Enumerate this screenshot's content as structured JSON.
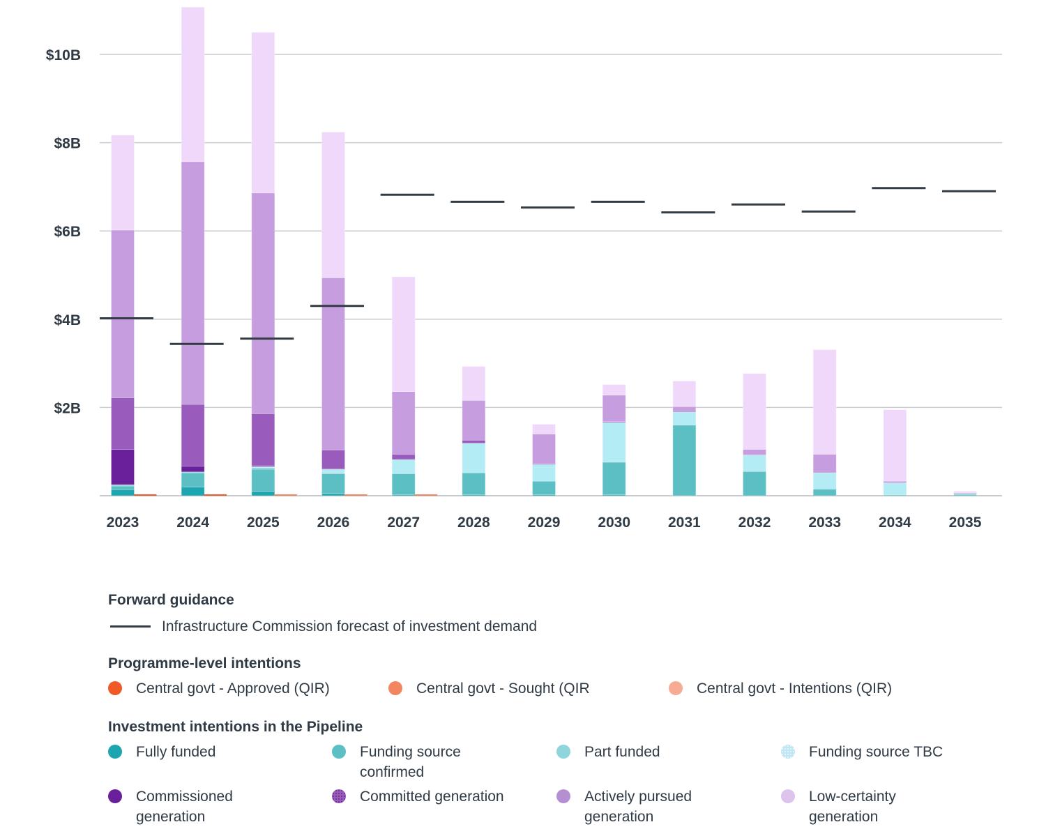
{
  "chart_data": {
    "type": "bar",
    "stacked": true,
    "title": "",
    "xlabel": "",
    "ylabel": "",
    "ylim": [
      0,
      11.2
    ],
    "y_ticks": [
      {
        "value": 2,
        "label": "$2B"
      },
      {
        "value": 4,
        "label": "$4B"
      },
      {
        "value": 6,
        "label": "$6B"
      },
      {
        "value": 8,
        "label": "$8B"
      },
      {
        "value": 10,
        "label": "$10B"
      }
    ],
    "grid": true,
    "categories": [
      "2023",
      "2024",
      "2025",
      "2026",
      "2027",
      "2028",
      "2029",
      "2030",
      "2031",
      "2032",
      "2033",
      "2034",
      "2035"
    ],
    "units": "$ billions",
    "series": [
      {
        "name": "Fully funded",
        "color": "#1ea6b0",
        "values": [
          0.14,
          0.2,
          0.1,
          0.05,
          0.02,
          0.02,
          0.02,
          0.02,
          0.0,
          0.0,
          0.0,
          0.0,
          0.0
        ]
      },
      {
        "name": "Funding source confirmed",
        "color": "#5cbfc4",
        "values": [
          0.08,
          0.32,
          0.5,
          0.45,
          0.48,
          0.5,
          0.31,
          0.74,
          1.6,
          0.55,
          0.15,
          0.02,
          0.03
        ]
      },
      {
        "name": "Part funded",
        "color": "#8fd6dc",
        "values": [
          0.03,
          0.02,
          0.04,
          0.02,
          0.0,
          0.0,
          0.0,
          0.0,
          0.0,
          0.0,
          0.0,
          0.0,
          0.0
        ]
      },
      {
        "name": "Funding source TBC",
        "color": "#b3ecf4",
        "values": [
          0.0,
          0.0,
          0.02,
          0.08,
          0.32,
          0.67,
          0.38,
          0.9,
          0.3,
          0.37,
          0.37,
          0.27,
          0.02
        ]
      },
      {
        "name": "Commissioned generation",
        "color": "#6a1f9b",
        "values": [
          0.8,
          0.13,
          0.02,
          0.02,
          0.0,
          0.0,
          0.0,
          0.0,
          0.0,
          0.0,
          0.0,
          0.0,
          0.0
        ]
      },
      {
        "name": "Committed generation",
        "color": "#995bbc",
        "values": [
          1.17,
          1.4,
          1.18,
          0.42,
          0.12,
          0.07,
          0.02,
          0.02,
          0.02,
          0.01,
          0.0,
          0.0,
          0.0
        ]
      },
      {
        "name": "Actively pursued generation",
        "color": "#c69ddf",
        "values": [
          3.8,
          5.5,
          5.0,
          3.9,
          1.42,
          0.9,
          0.67,
          0.6,
          0.1,
          0.12,
          0.42,
          0.04,
          0.02
        ]
      },
      {
        "name": "Low-certainty generation",
        "color": "#f0d8fb",
        "values": [
          2.15,
          3.5,
          3.64,
          3.3,
          2.6,
          0.77,
          0.22,
          0.24,
          0.58,
          1.72,
          2.37,
          1.62,
          0.03
        ]
      }
    ],
    "programme_series": [
      {
        "name": "Central govt - Approved (QIR)",
        "color": "#f05a28",
        "values": [
          0.02,
          0.02,
          0.0,
          0.0,
          0.0,
          0,
          0,
          0,
          0,
          0,
          0,
          0,
          0
        ]
      },
      {
        "name": "Central govt - Sought (QIR",
        "color": "#f28660",
        "values": [
          0.0,
          0.0,
          0.02,
          0.02,
          0.02,
          0,
          0,
          0,
          0,
          0,
          0,
          0,
          0
        ]
      },
      {
        "name": "Central govt - Intentions (QIR)",
        "color": "#f7ab92",
        "values": [
          0,
          0,
          0,
          0,
          0,
          0,
          0,
          0,
          0,
          0,
          0,
          0,
          0
        ]
      }
    ],
    "forecast": {
      "name": "Infrastructure Commission forecast of investment demand",
      "color": "#333b44",
      "values": [
        4.02,
        3.44,
        3.56,
        4.3,
        6.82,
        6.66,
        6.53,
        6.66,
        6.42,
        6.6,
        6.44,
        6.97,
        6.9
      ]
    },
    "legend_position": "bottom"
  },
  "legend": {
    "forward_guidance": {
      "heading": "Forward guidance",
      "items": [
        {
          "label": "Infrastructure Commission forecast of investment demand",
          "color": "#333b44",
          "kind": "line"
        }
      ]
    },
    "programme": {
      "heading": "Programme-level intentions",
      "items": [
        {
          "label": "Central govt - Approved (QIR)",
          "color": "#f05a28"
        },
        {
          "label": "Central govt - Sought (QIR",
          "color": "#f28660"
        },
        {
          "label": "Central govt - Intentions (QIR)",
          "color": "#f7ab92"
        }
      ]
    },
    "pipeline": {
      "heading": "Investment intentions in the Pipeline",
      "items": [
        {
          "label": "Fully funded",
          "color": "#1ea6b0"
        },
        {
          "label": "Funding source confirmed",
          "color": "#5cbfc4"
        },
        {
          "label": "Part funded",
          "color": "#8fd6dc"
        },
        {
          "label": "Funding source TBC",
          "color": "#bfe6f2"
        },
        {
          "label": "Commissioned generation",
          "color": "#6a1f9b"
        },
        {
          "label": "Committed generation",
          "color": "#995bbc"
        },
        {
          "label": "Actively pursued generation",
          "color": "#b48fd2"
        },
        {
          "label": "Low-certainty generation",
          "color": "#dcc4ec"
        }
      ]
    }
  }
}
